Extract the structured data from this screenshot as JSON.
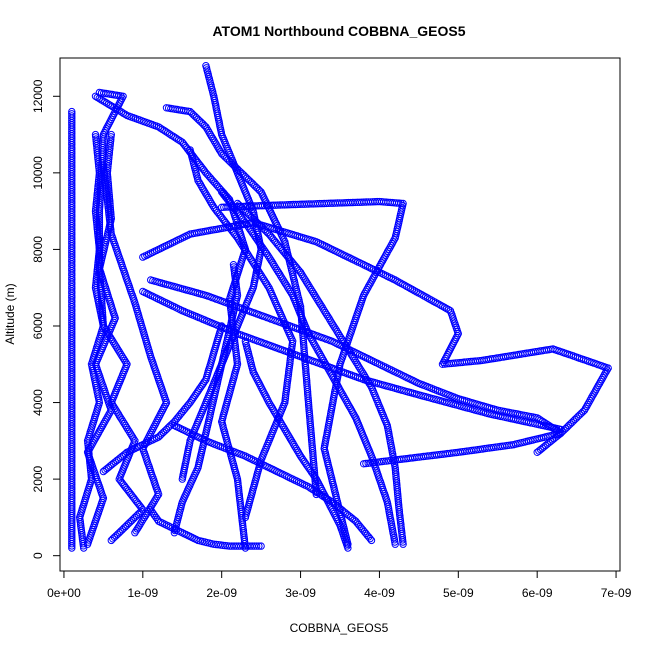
{
  "chart_data": {
    "type": "scatter",
    "title": "ATOM1 Northbound COBBNA_GEOS5",
    "xlabel": "COBBNA_GEOS5",
    "ylabel": "Altitude (m)",
    "xlim": [
      -5e-11,
      7.05e-09
    ],
    "ylim": [
      -400,
      13000
    ],
    "x_ticks": [
      0,
      1e-09,
      2e-09,
      3e-09,
      4e-09,
      5e-09,
      6e-09,
      7e-09
    ],
    "x_tick_labels": [
      "0e+00",
      "1e-09",
      "2e-09",
      "3e-09",
      "4e-09",
      "5e-09",
      "6e-09",
      "7e-09"
    ],
    "y_ticks": [
      0,
      2000,
      4000,
      6000,
      8000,
      10000,
      12000
    ],
    "y_tick_labels": [
      "0",
      "2000",
      "4000",
      "6000",
      "8000",
      "10000",
      "12000"
    ],
    "marker": "open-circle",
    "color": "#0000ff",
    "grid": false,
    "legend": "none",
    "series": [
      {
        "x": [
          1e-10,
          1e-10,
          1e-10,
          1e-10,
          1e-10,
          1e-10,
          1e-10,
          1e-10,
          1e-10,
          1e-10,
          1e-10,
          1e-10
        ],
        "y": [
          200,
          1500,
          2500,
          3500,
          4500,
          5500,
          6500,
          7500,
          8500,
          9500,
          10500,
          11600
        ]
      },
      {
        "x": [
          2.5e-10,
          2e-10,
          3.5e-10,
          3e-10,
          4.5e-10,
          3.5e-10,
          5e-10,
          4e-10,
          4.5e-10,
          4e-10,
          4.5e-10,
          4e-10
        ],
        "y": [
          200,
          1000,
          2000,
          3000,
          4000,
          5000,
          6000,
          7000,
          8000,
          9000,
          10000,
          11000
        ]
      },
      {
        "x": [
          3e-10,
          5e-10,
          3e-10,
          6e-10,
          4e-10,
          6.5e-10,
          4.5e-10,
          6e-10,
          5.5e-10,
          6e-10
        ],
        "y": [
          300,
          1500,
          2700,
          3800,
          5000,
          6200,
          7500,
          8800,
          10000,
          11000
        ]
      },
      {
        "x": [
          6e-10,
          1e-09,
          7e-10,
          9e-10,
          6e-10,
          8e-10,
          5e-10,
          4.5e-10,
          4.5e-10,
          5e-10,
          7.5e-10,
          4.5e-10
        ],
        "y": [
          400,
          1200,
          2000,
          3000,
          4000,
          5000,
          6000,
          7500,
          9000,
          11000,
          12000,
          12100
        ]
      },
      {
        "x": [
          9e-10,
          1.2e-09,
          1e-09,
          1.3e-09,
          1.1e-09,
          9e-10,
          6e-10,
          5e-10
        ],
        "y": [
          600,
          1600,
          2800,
          4000,
          5200,
          6600,
          8400,
          10200
        ]
      },
      {
        "x": [
          4e-10,
          8e-10,
          1.2e-09,
          1.5e-09,
          1.8e-09,
          2.1e-09,
          2.3e-09,
          2.1e-09,
          2.2e-09,
          2e-09,
          2.2e-09,
          2.3e-09
        ],
        "y": [
          12000,
          11500,
          11200,
          10800,
          10000,
          9300,
          8000,
          6700,
          5000,
          3500,
          2000,
          200
        ]
      },
      {
        "x": [
          1.8e-09,
          1.9e-09,
          2e-09,
          2.2e-09,
          2.4e-09,
          2.5e-09,
          2.4e-09,
          2.2e-09,
          2e-09,
          1.8e-09,
          1.6e-09,
          1.5e-09
        ],
        "y": [
          12800,
          12000,
          11000,
          10000,
          9000,
          8000,
          7000,
          6000,
          5000,
          4000,
          3000,
          2000
        ]
      },
      {
        "x": [
          1.3e-09,
          1.6e-09,
          1.8e-09,
          2e-09,
          2.5e-09,
          2.8e-09,
          3e-09,
          3.1e-09,
          3.2e-09
        ],
        "y": [
          11700,
          11600,
          11200,
          10500,
          9500,
          8200,
          6500,
          4000,
          1600
        ]
      },
      {
        "x": [
          1.6e-09,
          1.7e-09,
          1.9e-09,
          2.2e-09,
          2.6e-09,
          2.9e-09,
          2.8e-09,
          2.5e-09,
          2.3e-09
        ],
        "y": [
          10600,
          9800,
          9100,
          8300,
          7000,
          5600,
          4000,
          2500,
          1000
        ]
      },
      {
        "x": [
          2e-09,
          2.3e-09,
          2.6e-09,
          2.9e-09,
          3.1e-09,
          3.4e-09,
          3.7e-09,
          3.9e-09,
          4.1e-09,
          4.2e-09
        ],
        "y": [
          9500,
          8700,
          7800,
          6800,
          5800,
          4700,
          3600,
          2600,
          1400,
          300
        ]
      },
      {
        "x": [
          2.2e-09,
          2.6e-09,
          3e-09,
          3.3e-09,
          3.6e-09,
          3.9e-09,
          4.1e-09,
          4.2e-09,
          4.25e-09,
          4.3e-09
        ],
        "y": [
          9200,
          8400,
          7400,
          6400,
          5400,
          4400,
          3400,
          2300,
          1200,
          300
        ]
      },
      {
        "x": [
          2e-09,
          2.6e-09,
          3.3e-09,
          4e-09,
          4.3e-09,
          4.2e-09,
          3.8e-09,
          3.5e-09,
          3.3e-09,
          3.6e-09
        ],
        "y": [
          9100,
          9150,
          9200,
          9250,
          9200,
          8300,
          6800,
          5000,
          2800,
          300
        ]
      },
      {
        "x": [
          1e-09,
          1.6e-09,
          2.4e-09,
          3.2e-09,
          4.2e-09,
          4.9e-09,
          5e-09,
          4.8e-09,
          5.3e-09,
          6.2e-09,
          6.9e-09,
          6.6e-09,
          6.3e-09,
          6e-09
        ],
        "y": [
          7800,
          8400,
          8700,
          8200,
          7200,
          6400,
          5800,
          5000,
          5100,
          5400,
          4900,
          3800,
          3200,
          2700
        ]
      },
      {
        "x": [
          1.1e-09,
          1.8e-09,
          2.6e-09,
          3.4e-09,
          4e-09,
          4.5e-09,
          5e-09,
          5.5e-09,
          6e-09,
          6.3e-09,
          5.7e-09,
          5e-09,
          4.2e-09,
          3.8e-09
        ],
        "y": [
          7200,
          6800,
          6200,
          5600,
          5000,
          4500,
          4100,
          3800,
          3600,
          3200,
          2900,
          2700,
          2500,
          2400
        ]
      },
      {
        "x": [
          1e-09,
          1.5e-09,
          2.2e-09,
          3e-09,
          3.8e-09,
          4.5e-09,
          5.4e-09,
          6.3e-09
        ],
        "y": [
          6900,
          6400,
          5800,
          5200,
          4600,
          4200,
          3700,
          3300
        ]
      },
      {
        "x": [
          1.4e-09,
          1.8e-09,
          2.3e-09,
          2.7e-09,
          3.1e-09,
          3.4e-09,
          3.7e-09,
          3.9e-09
        ],
        "y": [
          3400,
          3000,
          2600,
          2200,
          1800,
          1400,
          900,
          400
        ]
      },
      {
        "x": [
          1.1e-09,
          1.2e-09,
          1.5e-09,
          1.7e-09,
          1.9e-09,
          2.1e-09,
          2.3e-09,
          2.5e-09
        ],
        "y": [
          1200,
          900,
          600,
          400,
          300,
          250,
          250,
          250
        ]
      },
      {
        "x": [
          5e-10,
          8e-10,
          1.2e-09,
          1.4e-09,
          1.6e-09,
          1.8e-09,
          1.9e-09,
          2e-09
        ],
        "y": [
          2200,
          2700,
          3100,
          3500,
          4000,
          4600,
          5300,
          6000
        ]
      },
      {
        "x": [
          1.4e-09,
          1.5e-09,
          1.7e-09,
          1.8e-09,
          1.9e-09,
          2e-09,
          2.1e-09,
          2.2e-09,
          2.15e-09
        ],
        "y": [
          600,
          1400,
          2300,
          3200,
          4100,
          5000,
          5900,
          6800,
          7600
        ]
      },
      {
        "x": [
          2.3e-09,
          2.4e-09,
          2.6e-09,
          2.8e-09,
          3e-09,
          3.2e-09,
          3.35e-09,
          3.5e-09,
          3.6e-09
        ],
        "y": [
          5600,
          4800,
          4000,
          3300,
          2600,
          2000,
          1400,
          800,
          200
        ]
      }
    ]
  }
}
